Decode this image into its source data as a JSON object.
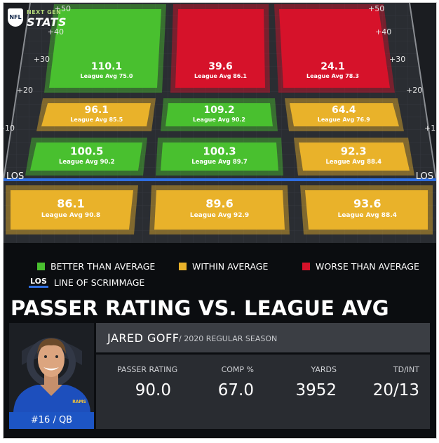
{
  "brand": {
    "logo_top": "NEXT GEN",
    "logo_bottom": "STATS",
    "league_mark": "NFL"
  },
  "field": {
    "yard_labels": [
      "+50",
      "+40",
      "+30",
      "+20",
      "+10"
    ],
    "los_label": "LOS",
    "zones": [
      {
        "row": "deep",
        "column": "left",
        "rating": "110.1",
        "league_avg": "League Avg 75.0",
        "status": "better"
      },
      {
        "row": "deep",
        "column": "middle",
        "rating": "39.6",
        "league_avg": "League Avg 86.1",
        "status": "worse"
      },
      {
        "row": "deep",
        "column": "right",
        "rating": "24.1",
        "league_avg": "League Avg 78.3",
        "status": "worse"
      },
      {
        "row": "intermediate",
        "column": "left",
        "rating": "96.1",
        "league_avg": "League Avg 85.5",
        "status": "within"
      },
      {
        "row": "intermediate",
        "column": "middle",
        "rating": "109.2",
        "league_avg": "League Avg 90.2",
        "status": "better"
      },
      {
        "row": "intermediate",
        "column": "right",
        "rating": "64.4",
        "league_avg": "League Avg 76.9",
        "status": "within"
      },
      {
        "row": "short",
        "column": "left",
        "rating": "100.5",
        "league_avg": "League Avg 90.2",
        "status": "better"
      },
      {
        "row": "short",
        "column": "middle",
        "rating": "100.3",
        "league_avg": "League Avg 89.7",
        "status": "better"
      },
      {
        "row": "short",
        "column": "right",
        "rating": "92.3",
        "league_avg": "League Avg 88.4",
        "status": "within"
      },
      {
        "row": "behind",
        "column": "left",
        "rating": "86.1",
        "league_avg": "League Avg 90.8",
        "status": "within"
      },
      {
        "row": "behind",
        "column": "middle",
        "rating": "89.6",
        "league_avg": "League Avg 92.9",
        "status": "within"
      },
      {
        "row": "behind",
        "column": "right",
        "rating": "93.6",
        "league_avg": "League Avg 88.4",
        "status": "within"
      }
    ]
  },
  "legend": {
    "better": "BETTER THAN AVERAGE",
    "within": "WITHIN AVERAGE",
    "worse": "WORSE THAN AVERAGE",
    "los_abbr": "LOS",
    "los_text": "LINE OF SCRIMMAGE"
  },
  "colors": {
    "better": "#49c02f",
    "within": "#e9b22a",
    "worse": "#d6122a",
    "los_line": "#2f6ee0",
    "panel_accent": "#1d55c4"
  },
  "title": "PASSER RATING VS. LEAGUE AVG",
  "player": {
    "name": "JARED GOFF",
    "season": "/ 2020 REGULAR SEASON",
    "jersey": "#16 / QB",
    "photo_icon": "player-headshot",
    "team_wordmark": "RAMS"
  },
  "stats": [
    {
      "label": "PASSER RATING",
      "value": "90.0"
    },
    {
      "label": "COMP %",
      "value": "67.0"
    },
    {
      "label": "YARDS",
      "value": "3952"
    },
    {
      "label": "TD/INT",
      "value": "20/13"
    }
  ]
}
